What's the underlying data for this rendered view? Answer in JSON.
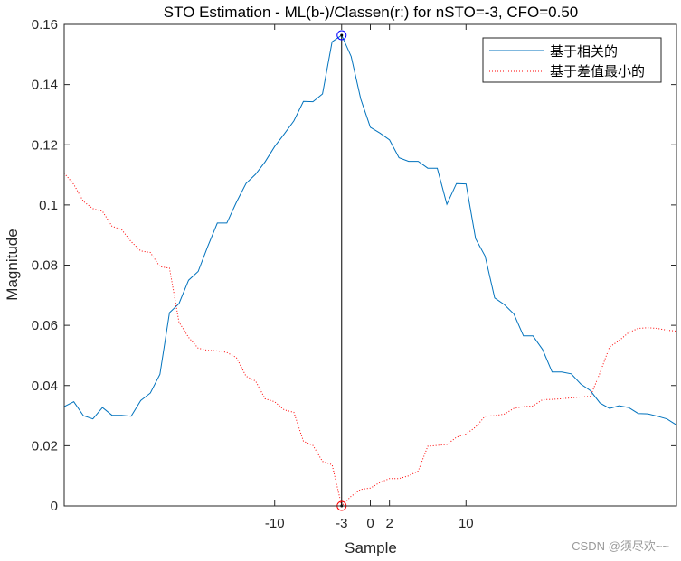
{
  "chart_data": {
    "type": "line",
    "title": "STO Estimation - ML(b-)/Classen(r:) for nSTO=-3, CFO=0.50",
    "xlabel": "Sample",
    "ylabel": "Magnitude",
    "xlim": [
      -32,
      32
    ],
    "ylim": [
      0,
      0.16
    ],
    "xticks": [
      -10,
      -3,
      0,
      2,
      10
    ],
    "xtick_labels": [
      "-10",
      "-3",
      "0",
      "2",
      "10"
    ],
    "yticks": [
      0,
      0.02,
      0.04,
      0.06,
      0.08,
      0.1,
      0.12,
      0.14,
      0.16
    ],
    "ytick_labels": [
      "0",
      "0.02",
      "0.04",
      "0.06",
      "0.08",
      "0.1",
      "0.12",
      "0.14",
      "0.16"
    ],
    "grid": false,
    "legend_position": "top-right",
    "x_start": -32,
    "series": [
      {
        "name": "基于相关的",
        "color": "#0072BD",
        "style": "solid",
        "values": [
          0.033,
          0.0346,
          0.03,
          0.0289,
          0.0327,
          0.0301,
          0.0301,
          0.0298,
          0.035,
          0.0375,
          0.0437,
          0.0642,
          0.0672,
          0.075,
          0.0779,
          0.0862,
          0.094,
          0.094,
          0.1009,
          0.1071,
          0.1102,
          0.1143,
          0.1194,
          0.1236,
          0.1279,
          0.1344,
          0.1343,
          0.1369,
          0.1542,
          0.1564,
          0.1493,
          0.1352,
          0.1258,
          0.1239,
          0.1216,
          0.1157,
          0.1145,
          0.1145,
          0.1122,
          0.1122,
          0.1002,
          0.1071,
          0.107,
          0.0888,
          0.083,
          0.0691,
          0.0669,
          0.0638,
          0.0565,
          0.0565,
          0.052,
          0.0445,
          0.0445,
          0.0439,
          0.0405,
          0.0383,
          0.0342,
          0.0324,
          0.0333,
          0.0327,
          0.0307,
          0.0306,
          0.0298,
          0.0289,
          0.0269
        ]
      },
      {
        "name": "基于差值最小的",
        "color": "#FF0000",
        "style": "dotted",
        "values": [
          0.1106,
          0.1068,
          0.1012,
          0.0988,
          0.0979,
          0.0929,
          0.0918,
          0.0878,
          0.0847,
          0.0842,
          0.0795,
          0.079,
          0.0611,
          0.056,
          0.0524,
          0.0517,
          0.0515,
          0.051,
          0.0493,
          0.0431,
          0.0415,
          0.0356,
          0.0346,
          0.0319,
          0.0311,
          0.0215,
          0.0201,
          0.0148,
          0.0137,
          0.0,
          0.0032,
          0.0055,
          0.0059,
          0.0078,
          0.0091,
          0.0091,
          0.01,
          0.0116,
          0.0198,
          0.0201,
          0.0204,
          0.0228,
          0.0239,
          0.0262,
          0.0298,
          0.03,
          0.0305,
          0.0324,
          0.033,
          0.0332,
          0.0353,
          0.0354,
          0.0356,
          0.0359,
          0.0362,
          0.0364,
          0.0442,
          0.0528,
          0.0549,
          0.0576,
          0.059,
          0.0592,
          0.059,
          0.0584,
          0.0581
        ]
      }
    ],
    "annotations": {
      "marker_line_x": -3,
      "max_marker": {
        "x": -3,
        "y": 0.1564,
        "color": "#0000FF"
      },
      "min_marker": {
        "x": -3,
        "y": 0,
        "color": "#FF0000"
      }
    }
  },
  "watermark": "CSDN @须尽欢~~"
}
